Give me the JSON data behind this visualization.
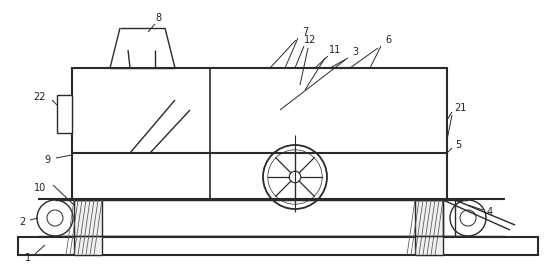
{
  "bg_color": "#ffffff",
  "line_color": "#2a2a2a",
  "lw": 1.0,
  "figsize": [
    5.59,
    2.67
  ],
  "dpi": 100,
  "label_fs": 7.0,
  "label_color": "#222222"
}
